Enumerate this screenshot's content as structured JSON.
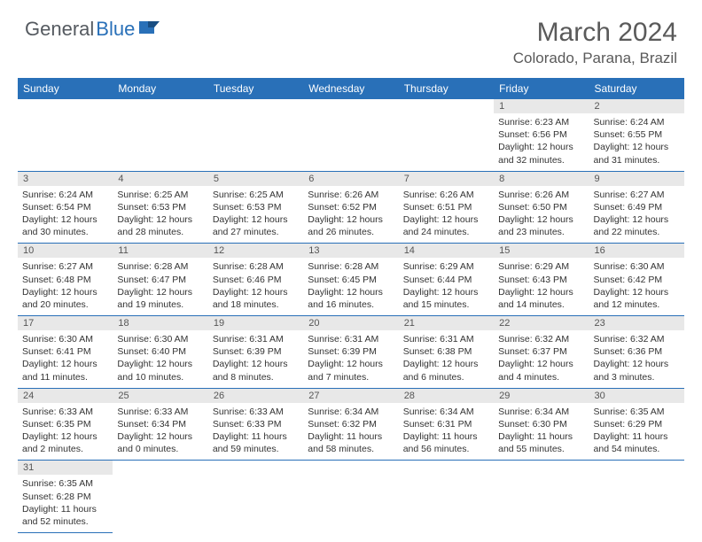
{
  "logo": {
    "general": "General",
    "blue": "Blue"
  },
  "title": "March 2024",
  "location": "Colorado, Parana, Brazil",
  "colors": {
    "header_bg": "#2970b8",
    "header_text": "#ffffff",
    "daynum_bg": "#e8e8e8",
    "border": "#2970b8",
    "page_bg": "#ffffff",
    "text": "#333333",
    "title_text": "#5a5a5a"
  },
  "typography": {
    "title_fontsize": 30,
    "location_fontsize": 17,
    "dayheader_fontsize": 12,
    "cell_fontsize": 10.5
  },
  "day_headers": [
    "Sunday",
    "Monday",
    "Tuesday",
    "Wednesday",
    "Thursday",
    "Friday",
    "Saturday"
  ],
  "weeks": [
    [
      null,
      null,
      null,
      null,
      null,
      {
        "n": "1",
        "sr": "Sunrise: 6:23 AM",
        "ss": "Sunset: 6:56 PM",
        "dl": "Daylight: 12 hours and 32 minutes."
      },
      {
        "n": "2",
        "sr": "Sunrise: 6:24 AM",
        "ss": "Sunset: 6:55 PM",
        "dl": "Daylight: 12 hours and 31 minutes."
      }
    ],
    [
      {
        "n": "3",
        "sr": "Sunrise: 6:24 AM",
        "ss": "Sunset: 6:54 PM",
        "dl": "Daylight: 12 hours and 30 minutes."
      },
      {
        "n": "4",
        "sr": "Sunrise: 6:25 AM",
        "ss": "Sunset: 6:53 PM",
        "dl": "Daylight: 12 hours and 28 minutes."
      },
      {
        "n": "5",
        "sr": "Sunrise: 6:25 AM",
        "ss": "Sunset: 6:53 PM",
        "dl": "Daylight: 12 hours and 27 minutes."
      },
      {
        "n": "6",
        "sr": "Sunrise: 6:26 AM",
        "ss": "Sunset: 6:52 PM",
        "dl": "Daylight: 12 hours and 26 minutes."
      },
      {
        "n": "7",
        "sr": "Sunrise: 6:26 AM",
        "ss": "Sunset: 6:51 PM",
        "dl": "Daylight: 12 hours and 24 minutes."
      },
      {
        "n": "8",
        "sr": "Sunrise: 6:26 AM",
        "ss": "Sunset: 6:50 PM",
        "dl": "Daylight: 12 hours and 23 minutes."
      },
      {
        "n": "9",
        "sr": "Sunrise: 6:27 AM",
        "ss": "Sunset: 6:49 PM",
        "dl": "Daylight: 12 hours and 22 minutes."
      }
    ],
    [
      {
        "n": "10",
        "sr": "Sunrise: 6:27 AM",
        "ss": "Sunset: 6:48 PM",
        "dl": "Daylight: 12 hours and 20 minutes."
      },
      {
        "n": "11",
        "sr": "Sunrise: 6:28 AM",
        "ss": "Sunset: 6:47 PM",
        "dl": "Daylight: 12 hours and 19 minutes."
      },
      {
        "n": "12",
        "sr": "Sunrise: 6:28 AM",
        "ss": "Sunset: 6:46 PM",
        "dl": "Daylight: 12 hours and 18 minutes."
      },
      {
        "n": "13",
        "sr": "Sunrise: 6:28 AM",
        "ss": "Sunset: 6:45 PM",
        "dl": "Daylight: 12 hours and 16 minutes."
      },
      {
        "n": "14",
        "sr": "Sunrise: 6:29 AM",
        "ss": "Sunset: 6:44 PM",
        "dl": "Daylight: 12 hours and 15 minutes."
      },
      {
        "n": "15",
        "sr": "Sunrise: 6:29 AM",
        "ss": "Sunset: 6:43 PM",
        "dl": "Daylight: 12 hours and 14 minutes."
      },
      {
        "n": "16",
        "sr": "Sunrise: 6:30 AM",
        "ss": "Sunset: 6:42 PM",
        "dl": "Daylight: 12 hours and 12 minutes."
      }
    ],
    [
      {
        "n": "17",
        "sr": "Sunrise: 6:30 AM",
        "ss": "Sunset: 6:41 PM",
        "dl": "Daylight: 12 hours and 11 minutes."
      },
      {
        "n": "18",
        "sr": "Sunrise: 6:30 AM",
        "ss": "Sunset: 6:40 PM",
        "dl": "Daylight: 12 hours and 10 minutes."
      },
      {
        "n": "19",
        "sr": "Sunrise: 6:31 AM",
        "ss": "Sunset: 6:39 PM",
        "dl": "Daylight: 12 hours and 8 minutes."
      },
      {
        "n": "20",
        "sr": "Sunrise: 6:31 AM",
        "ss": "Sunset: 6:39 PM",
        "dl": "Daylight: 12 hours and 7 minutes."
      },
      {
        "n": "21",
        "sr": "Sunrise: 6:31 AM",
        "ss": "Sunset: 6:38 PM",
        "dl": "Daylight: 12 hours and 6 minutes."
      },
      {
        "n": "22",
        "sr": "Sunrise: 6:32 AM",
        "ss": "Sunset: 6:37 PM",
        "dl": "Daylight: 12 hours and 4 minutes."
      },
      {
        "n": "23",
        "sr": "Sunrise: 6:32 AM",
        "ss": "Sunset: 6:36 PM",
        "dl": "Daylight: 12 hours and 3 minutes."
      }
    ],
    [
      {
        "n": "24",
        "sr": "Sunrise: 6:33 AM",
        "ss": "Sunset: 6:35 PM",
        "dl": "Daylight: 12 hours and 2 minutes."
      },
      {
        "n": "25",
        "sr": "Sunrise: 6:33 AM",
        "ss": "Sunset: 6:34 PM",
        "dl": "Daylight: 12 hours and 0 minutes."
      },
      {
        "n": "26",
        "sr": "Sunrise: 6:33 AM",
        "ss": "Sunset: 6:33 PM",
        "dl": "Daylight: 11 hours and 59 minutes."
      },
      {
        "n": "27",
        "sr": "Sunrise: 6:34 AM",
        "ss": "Sunset: 6:32 PM",
        "dl": "Daylight: 11 hours and 58 minutes."
      },
      {
        "n": "28",
        "sr": "Sunrise: 6:34 AM",
        "ss": "Sunset: 6:31 PM",
        "dl": "Daylight: 11 hours and 56 minutes."
      },
      {
        "n": "29",
        "sr": "Sunrise: 6:34 AM",
        "ss": "Sunset: 6:30 PM",
        "dl": "Daylight: 11 hours and 55 minutes."
      },
      {
        "n": "30",
        "sr": "Sunrise: 6:35 AM",
        "ss": "Sunset: 6:29 PM",
        "dl": "Daylight: 11 hours and 54 minutes."
      }
    ],
    [
      {
        "n": "31",
        "sr": "Sunrise: 6:35 AM",
        "ss": "Sunset: 6:28 PM",
        "dl": "Daylight: 11 hours and 52 minutes."
      },
      null,
      null,
      null,
      null,
      null,
      null
    ]
  ]
}
